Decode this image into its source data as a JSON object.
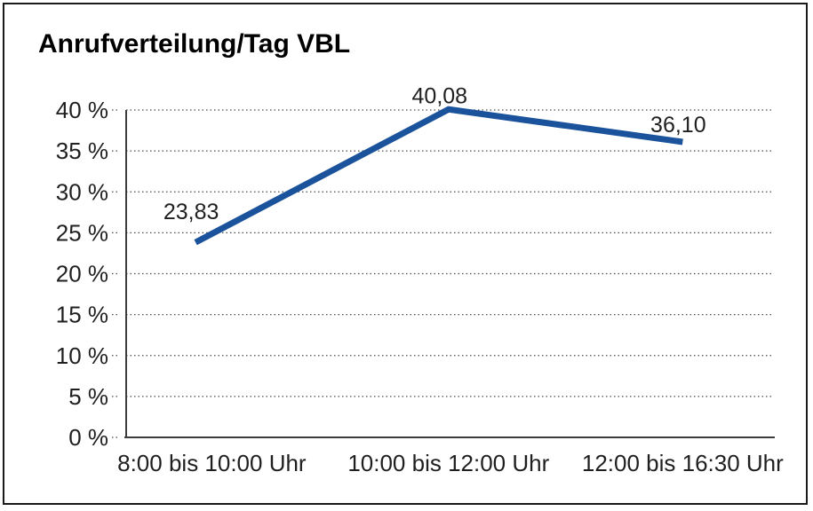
{
  "page": {
    "background": "#ffffff",
    "frame_border_color": "#1a1a1a"
  },
  "chart_data": {
    "type": "line",
    "title": "Anrufverteilung/Tag VBL",
    "categories": [
      "8:00 bis 10:00 Uhr",
      "10:00 bis 12:00 Uhr",
      "12:00 bis 16:30 Uhr"
    ],
    "values": [
      23.83,
      40.08,
      36.1
    ],
    "value_labels": [
      "23,83",
      "40,08",
      "36,10"
    ],
    "xlabel": "",
    "ylabel": "",
    "ylim": [
      0,
      40
    ],
    "ytick_step": 5,
    "ytick_labels": [
      "0 %",
      "5 %",
      "10 %",
      "15 %",
      "20 %",
      "25 %",
      "30 %",
      "35 %",
      "40 %"
    ],
    "grid": {
      "horizontal": "dotted",
      "vertical": "none"
    },
    "legend_position": "none",
    "line_color": "#1a529c",
    "axis_color": "#3d3d3d",
    "gridline_color": "#4a4a4a",
    "text_color": "#1f1f1f"
  }
}
